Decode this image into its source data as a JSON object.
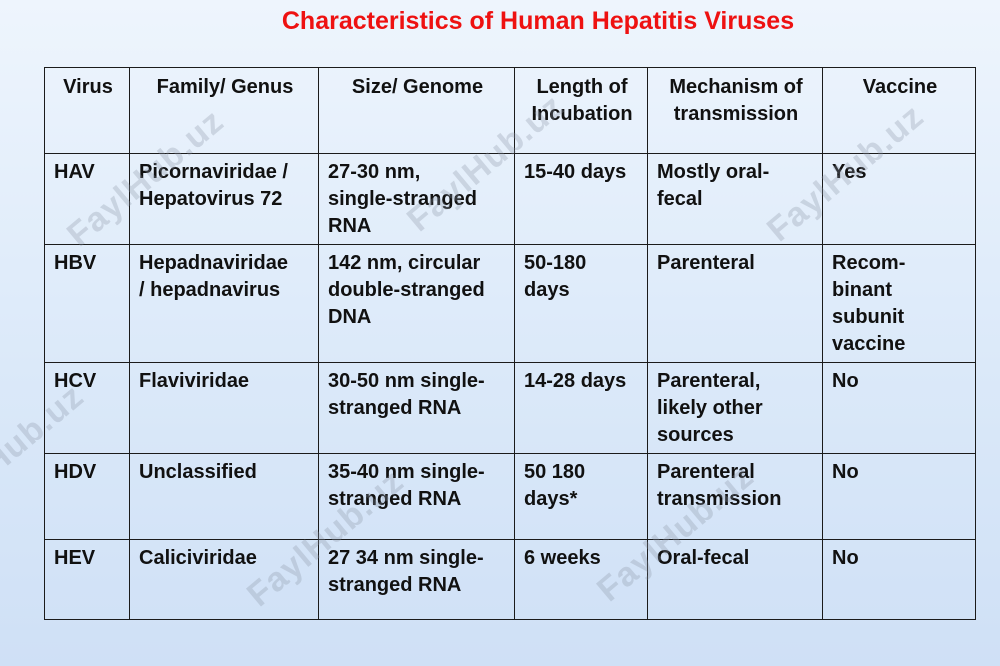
{
  "title": "Characteristics of Human Hepatitis Viruses",
  "watermark": "FaylHub.uz",
  "table": {
    "headers": [
      "Virus",
      "Family/ Genus",
      "Size/ Genome",
      "Length of\nIncubation",
      "Mechanism of\ntransmission",
      "Vaccine"
    ],
    "rows": [
      [
        "HAV",
        "Picornaviridae /\nHepatovirus 72",
        "27-30 nm,\nsingle-stranged\nRNA",
        "15-40 days",
        "Mostly oral-\nfecal",
        "Yes"
      ],
      [
        "HBV",
        "Hepadnaviridae\n/ hepadnavirus",
        "142 nm, circular\ndouble-stranged\nDNA",
        "50-180\ndays",
        "Parenteral",
        "Recom-\nbinant\nsubunit\nvaccine"
      ],
      [
        "HCV",
        "Flaviviridae",
        "30-50 nm single-\nstranged RNA",
        "14-28 days",
        "Parenteral,\nlikely other\nsources",
        "No"
      ],
      [
        "HDV",
        "Unclassified",
        "35-40 nm single-\nstranged RNA",
        "50 180\ndays*",
        "Parenteral\ntransmission",
        "No"
      ],
      [
        "HEV",
        "Caliciviridae",
        "27 34 nm single-\nstranged RNA",
        "6 weeks",
        "Oral-fecal",
        "No"
      ]
    ]
  }
}
